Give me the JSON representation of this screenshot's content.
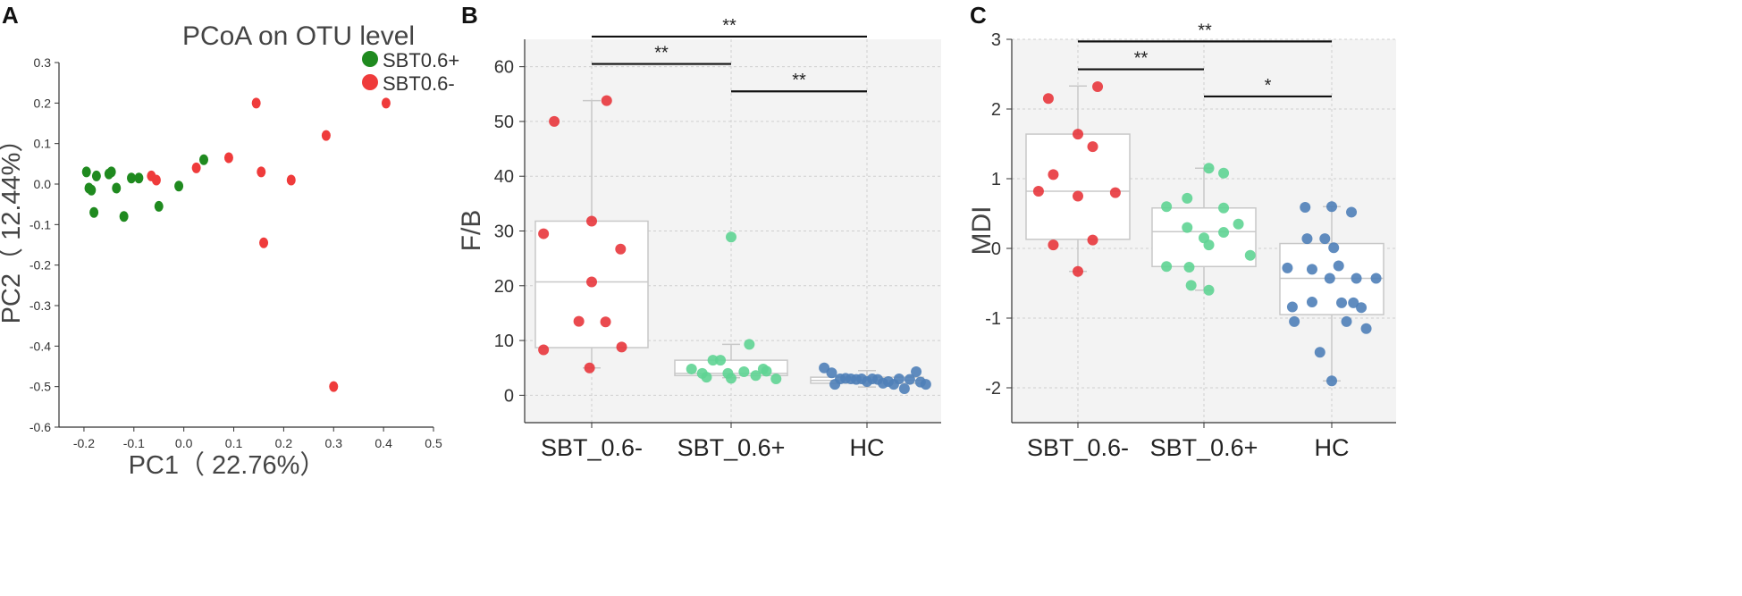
{
  "colors": {
    "group_plus": "#1f8a1f",
    "group_minus": "#ef3b3b",
    "sbt_minus": "#e8363c",
    "sbt_plus": "#5fd493",
    "hc": "#4f7fb8",
    "box_stroke": "#c8c8c8",
    "plot_bg": "#f3f3f3",
    "grid": "#cfcfcf"
  },
  "chart_data": [
    {
      "panel": "A",
      "type": "scatter",
      "title": "PCoA on OTU level",
      "xlabel": "PC1（ 22.76%）",
      "ylabel": "PC2（ 12.44%）",
      "xlim": [
        -0.25,
        0.5
      ],
      "ylim": [
        -0.6,
        0.3
      ],
      "xticks": [
        "-0.2",
        "-0.1",
        "0.0",
        "0.1",
        "0.2",
        "0.3",
        "0.4",
        "0.5"
      ],
      "yticks": [
        "0.3",
        "0.2",
        "0.1",
        "0.0",
        "-0.1",
        "-0.2",
        "-0.3",
        "-0.4",
        "-0.5",
        "-0.6"
      ],
      "legend_position": "top-right",
      "series": [
        {
          "name": "SBT0.6+",
          "color": "#1f8a1f",
          "points": [
            [
              -0.195,
              0.03
            ],
            [
              -0.19,
              -0.01
            ],
            [
              -0.185,
              -0.015
            ],
            [
              -0.18,
              -0.07
            ],
            [
              -0.175,
              0.02
            ],
            [
              -0.15,
              0.025
            ],
            [
              -0.145,
              0.03
            ],
            [
              -0.135,
              -0.01
            ],
            [
              -0.12,
              -0.08
            ],
            [
              -0.105,
              0.015
            ],
            [
              -0.09,
              0.015
            ],
            [
              -0.05,
              -0.055
            ],
            [
              -0.01,
              -0.005
            ],
            [
              0.04,
              0.06
            ]
          ]
        },
        {
          "name": "SBT0.6-",
          "color": "#ef3b3b",
          "points": [
            [
              -0.065,
              0.02
            ],
            [
              -0.055,
              0.01
            ],
            [
              0.025,
              0.04
            ],
            [
              0.09,
              0.065
            ],
            [
              0.145,
              0.2
            ],
            [
              0.155,
              0.03
            ],
            [
              0.16,
              -0.145
            ],
            [
              0.215,
              0.01
            ],
            [
              0.285,
              0.12
            ],
            [
              0.3,
              -0.5
            ],
            [
              0.405,
              0.2
            ]
          ]
        }
      ]
    },
    {
      "panel": "B",
      "type": "box",
      "ylabel": "F/B",
      "ylim": [
        -5,
        65
      ],
      "yticks": [
        "0",
        "10",
        "20",
        "30",
        "40",
        "50",
        "60"
      ],
      "categories": [
        "SBT_0.6-",
        "SBT_0.6+",
        "HC"
      ],
      "groups": [
        {
          "name": "SBT_0.6-",
          "color": "#e8363c",
          "box": {
            "whisker_low": 5,
            "q1": 8.7,
            "median": 20.7,
            "q3": 31.8,
            "whisker_high": 53.8
          },
          "points": [
            [
              -0.45,
              8.3
            ],
            [
              -0.45,
              29.5
            ],
            [
              -0.35,
              50.0
            ],
            [
              -0.12,
              13.5
            ],
            [
              -0.02,
              5.0
            ],
            [
              0.0,
              20.7
            ],
            [
              0.0,
              31.8
            ],
            [
              0.13,
              13.4
            ],
            [
              0.14,
              53.8
            ],
            [
              0.27,
              26.7
            ],
            [
              0.28,
              8.8
            ]
          ]
        },
        {
          "name": "SBT_0.6+",
          "color": "#5fd493",
          "box": {
            "whisker_low": 3.2,
            "q1": 3.6,
            "median": 4.0,
            "q3": 6.4,
            "whisker_high": 9.3
          },
          "points": [
            [
              -0.37,
              4.8
            ],
            [
              -0.27,
              4.0
            ],
            [
              -0.23,
              3.3
            ],
            [
              -0.17,
              6.4
            ],
            [
              -0.1,
              6.4
            ],
            [
              -0.03,
              4.0
            ],
            [
              0.0,
              28.9
            ],
            [
              0.0,
              3.1
            ],
            [
              0.12,
              4.3
            ],
            [
              0.17,
              9.3
            ],
            [
              0.23,
              3.6
            ],
            [
              0.3,
              4.8
            ],
            [
              0.33,
              4.4
            ],
            [
              0.42,
              3.0
            ]
          ]
        },
        {
          "name": "HC",
          "color": "#4f7fb8",
          "box": {
            "whisker_low": 1.5,
            "q1": 2.2,
            "median": 2.7,
            "q3": 3.3,
            "whisker_high": 4.5
          },
          "points": [
            [
              -0.4,
              5.0
            ],
            [
              -0.33,
              4.1
            ],
            [
              -0.3,
              2.0
            ],
            [
              -0.25,
              3.0
            ],
            [
              -0.2,
              3.1
            ],
            [
              -0.15,
              3.0
            ],
            [
              -0.1,
              2.9
            ],
            [
              -0.05,
              3.0
            ],
            [
              0.0,
              2.5
            ],
            [
              0.05,
              3.0
            ],
            [
              0.1,
              2.9
            ],
            [
              0.15,
              2.2
            ],
            [
              0.2,
              2.5
            ],
            [
              0.25,
              2.0
            ],
            [
              0.3,
              3.0
            ],
            [
              0.35,
              1.2
            ],
            [
              0.4,
              2.9
            ],
            [
              0.46,
              4.3
            ],
            [
              0.5,
              2.4
            ],
            [
              0.55,
              2.0
            ]
          ]
        }
      ],
      "significance": [
        {
          "from": 0,
          "to": 2,
          "label": "**",
          "y": 65.5
        },
        {
          "from": 0,
          "to": 1,
          "label": "**",
          "y": 60.5
        },
        {
          "from": 1,
          "to": 2,
          "label": "**",
          "y": 55.5
        }
      ]
    },
    {
      "panel": "C",
      "type": "box",
      "ylabel": "MDI",
      "ylim": [
        -2.5,
        3
      ],
      "yticks": [
        "3",
        "2",
        "1",
        "0",
        "-1",
        "-2"
      ],
      "categories": [
        "SBT_0.6-",
        "SBT_0.6+",
        "HC"
      ],
      "groups": [
        {
          "name": "SBT_0.6-",
          "color": "#e8363c",
          "box": {
            "whisker_low": -0.33,
            "q1": 0.13,
            "median": 0.82,
            "q3": 1.64,
            "whisker_high": 2.33
          },
          "points": [
            [
              -0.4,
              0.82
            ],
            [
              -0.3,
              2.15
            ],
            [
              -0.25,
              1.06
            ],
            [
              -0.25,
              0.05
            ],
            [
              0.0,
              1.64
            ],
            [
              0.0,
              0.75
            ],
            [
              0.0,
              -0.33
            ],
            [
              0.15,
              1.46
            ],
            [
              0.15,
              0.12
            ],
            [
              0.2,
              2.32
            ],
            [
              0.38,
              0.8
            ]
          ]
        },
        {
          "name": "SBT_0.6+",
          "color": "#5fd493",
          "box": {
            "whisker_low": -0.6,
            "q1": -0.26,
            "median": 0.24,
            "q3": 0.58,
            "whisker_high": 1.15
          },
          "points": [
            [
              -0.38,
              0.6
            ],
            [
              -0.38,
              -0.26
            ],
            [
              -0.17,
              0.72
            ],
            [
              -0.17,
              0.3
            ],
            [
              -0.15,
              -0.27
            ],
            [
              -0.13,
              -0.53
            ],
            [
              0.0,
              0.15
            ],
            [
              0.05,
              1.15
            ],
            [
              0.05,
              0.05
            ],
            [
              0.05,
              -0.6
            ],
            [
              0.2,
              1.08
            ],
            [
              0.2,
              0.58
            ],
            [
              0.2,
              0.23
            ],
            [
              0.35,
              0.35
            ],
            [
              0.47,
              -0.1
            ]
          ]
        },
        {
          "name": "HC",
          "color": "#4f7fb8",
          "box": {
            "whisker_low": -1.9,
            "q1": -0.95,
            "median": -0.43,
            "q3": 0.07,
            "whisker_high": 0.6
          },
          "points": [
            [
              -0.45,
              -0.28
            ],
            [
              -0.4,
              -0.84
            ],
            [
              -0.38,
              -1.05
            ],
            [
              -0.27,
              0.59
            ],
            [
              -0.25,
              0.14
            ],
            [
              -0.2,
              -0.3
            ],
            [
              -0.2,
              -0.77
            ],
            [
              -0.12,
              -1.49
            ],
            [
              -0.07,
              0.14
            ],
            [
              0.0,
              0.6
            ],
            [
              0.02,
              0.01
            ],
            [
              -0.02,
              -0.43
            ],
            [
              0.07,
              -0.25
            ],
            [
              0.0,
              -1.9
            ],
            [
              0.1,
              -0.78
            ],
            [
              0.15,
              -1.05
            ],
            [
              0.2,
              0.52
            ],
            [
              0.22,
              -0.78
            ],
            [
              0.25,
              -0.43
            ],
            [
              0.3,
              -0.85
            ],
            [
              0.35,
              -1.15
            ],
            [
              0.45,
              -0.43
            ]
          ]
        }
      ],
      "significance": [
        {
          "from": 0,
          "to": 2,
          "label": "**",
          "y": 2.97
        },
        {
          "from": 0,
          "to": 1,
          "label": "**",
          "y": 2.57
        },
        {
          "from": 1,
          "to": 2,
          "label": "*",
          "y": 2.18
        }
      ]
    }
  ],
  "panels": {
    "a": "A",
    "b": "B",
    "c": "C"
  }
}
